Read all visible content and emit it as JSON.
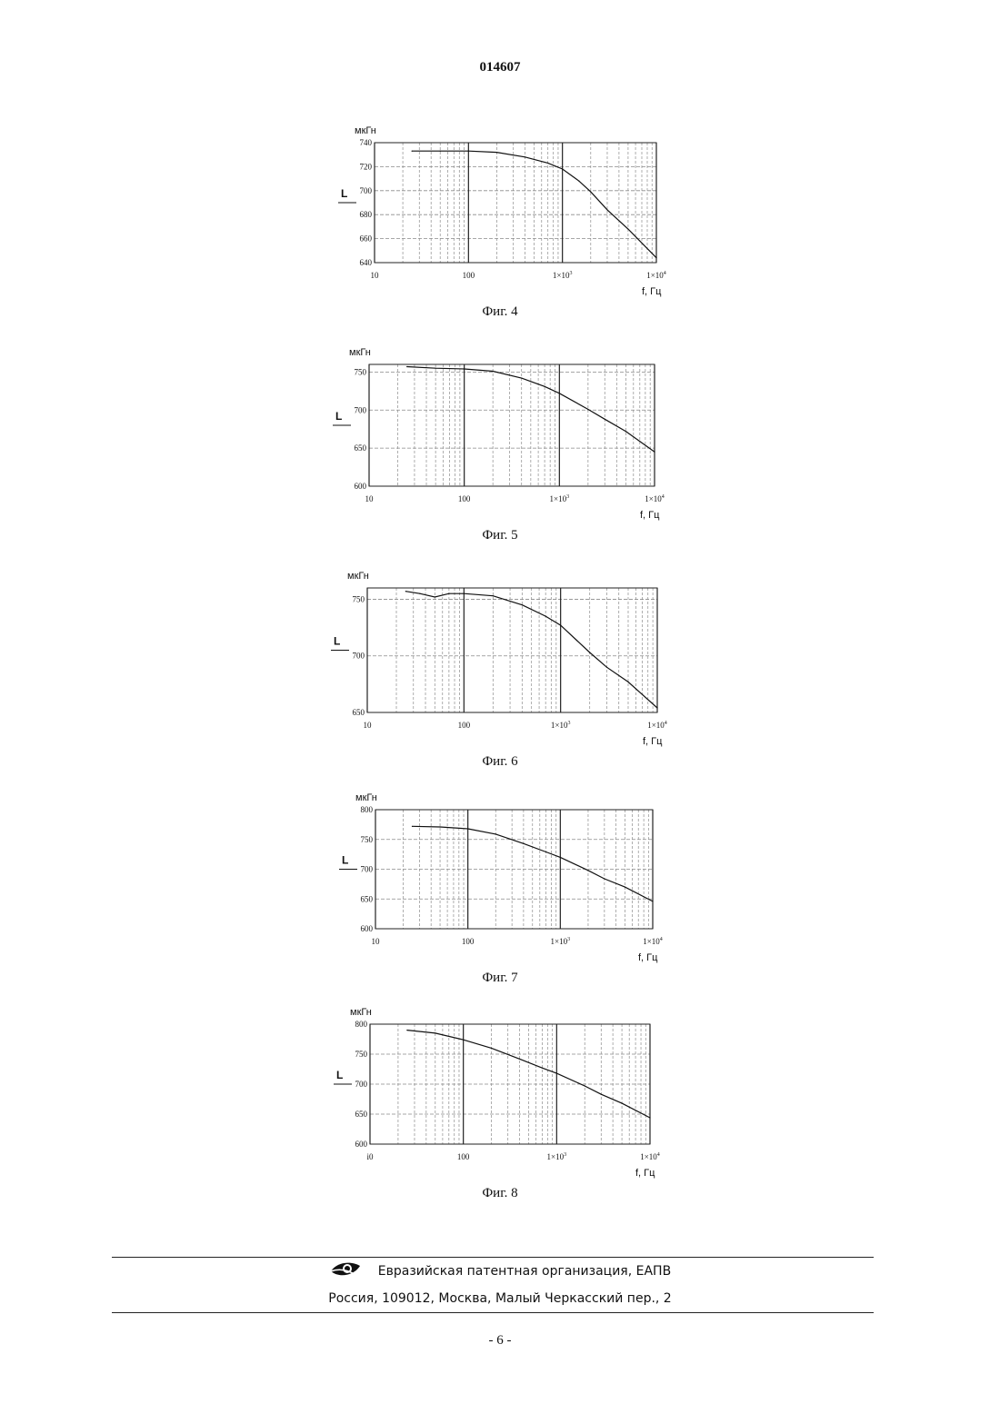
{
  "header": {
    "doc_number": "014607"
  },
  "chart_data": [
    {
      "type": "line",
      "caption": "Фиг. 4",
      "yunit": "мкГн",
      "ylabel": "L",
      "xlabel": "f, Гц",
      "xscale": "log",
      "xlim": [
        10,
        10000
      ],
      "ylim": [
        640,
        740
      ],
      "yticks": [
        640,
        660,
        680,
        700,
        720,
        740
      ],
      "ytick_labels": [
        "640",
        "660",
        "680",
        "700",
        "720",
        "740"
      ],
      "xticks": [
        10,
        100,
        1000,
        10000
      ],
      "xtick_labels": [
        {
          "base": "10",
          "exp": ""
        },
        {
          "base": "100",
          "exp": ""
        },
        {
          "base": "1×10",
          "exp": "3"
        },
        {
          "base": "1×10",
          "exp": "4"
        }
      ],
      "grid": true,
      "x": [
        25,
        50,
        100,
        200,
        400,
        700,
        1000,
        1500,
        2000,
        3000,
        5000,
        10000
      ],
      "y": [
        733,
        733,
        733,
        732,
        728,
        723,
        718,
        708,
        699,
        684,
        668,
        644
      ]
    },
    {
      "type": "line",
      "caption": "Фиг. 5",
      "yunit": "мкГн",
      "ylabel": "L",
      "xlabel": "f, Гц",
      "xscale": "log",
      "xlim": [
        10,
        10000
      ],
      "ylim": [
        600,
        760
      ],
      "yticks": [
        600,
        650,
        700,
        750
      ],
      "ytick_labels": [
        "600",
        "650",
        "700",
        "750"
      ],
      "xticks": [
        10,
        100,
        1000,
        10000
      ],
      "xtick_labels": [
        {
          "base": "10",
          "exp": ""
        },
        {
          "base": "100",
          "exp": ""
        },
        {
          "base": "1×10",
          "exp": "3"
        },
        {
          "base": "1×10",
          "exp": "4"
        }
      ],
      "grid": true,
      "x": [
        25,
        50,
        100,
        200,
        400,
        700,
        1000,
        2000,
        3000,
        5000,
        10000
      ],
      "y": [
        757,
        755,
        754,
        751,
        742,
        731,
        722,
        701,
        688,
        672,
        645
      ]
    },
    {
      "type": "line",
      "caption": "Фиг. 6",
      "yunit": "мкГн",
      "ylabel": "L",
      "xlabel": "f, Гц",
      "xscale": "log",
      "xlim": [
        10,
        10000
      ],
      "ylim": [
        650,
        760
      ],
      "yticks": [
        650,
        700,
        750
      ],
      "ytick_labels": [
        "650",
        "700",
        "750"
      ],
      "xticks": [
        10,
        100,
        1000,
        10000
      ],
      "xtick_labels": [
        {
          "base": "10",
          "exp": ""
        },
        {
          "base": "100",
          "exp": ""
        },
        {
          "base": "1×10",
          "exp": "3"
        },
        {
          "base": "1×10",
          "exp": "4"
        }
      ],
      "grid": true,
      "x": [
        25,
        35,
        50,
        70,
        100,
        200,
        400,
        700,
        1000,
        2000,
        3000,
        5000,
        10000
      ],
      "y": [
        757,
        755,
        752,
        755,
        755,
        753,
        745,
        735,
        727,
        703,
        690,
        677,
        654
      ]
    },
    {
      "type": "line",
      "caption": "Фиг. 7",
      "yunit": "мкГн",
      "ylabel": "L",
      "xlabel": "f, Гц",
      "xscale": "log",
      "xlim": [
        10,
        10000
      ],
      "ylim": [
        600,
        800
      ],
      "yticks": [
        600,
        650,
        700,
        750,
        800
      ],
      "ytick_labels": [
        "600",
        "650",
        "700",
        "750",
        "800"
      ],
      "xticks": [
        10,
        100,
        1000,
        10000
      ],
      "xtick_labels": [
        {
          "base": "10",
          "exp": ""
        },
        {
          "base": "100",
          "exp": ""
        },
        {
          "base": "1×10",
          "exp": "3"
        },
        {
          "base": "1×10",
          "exp": "4"
        }
      ],
      "grid": true,
      "x": [
        25,
        50,
        100,
        200,
        400,
        700,
        1000,
        2000,
        3000,
        5000,
        10000
      ],
      "y": [
        772,
        771,
        768,
        759,
        743,
        729,
        720,
        698,
        684,
        670,
        646
      ]
    },
    {
      "type": "line",
      "caption": "Фиг. 8",
      "yunit": "мкГн",
      "ylabel": "L",
      "xlabel": "f, Гц",
      "xscale": "log",
      "xlim": [
        10,
        10000
      ],
      "ylim": [
        600,
        800
      ],
      "yticks": [
        600,
        650,
        700,
        750,
        800
      ],
      "ytick_labels": [
        "600",
        "650",
        "700",
        "750",
        "800"
      ],
      "xticks": [
        10,
        100,
        1000,
        10000
      ],
      "xtick_labels": [
        {
          "base": "i0",
          "exp": ""
        },
        {
          "base": "100",
          "exp": ""
        },
        {
          "base": "1×10",
          "exp": "3"
        },
        {
          "base": "1×10",
          "exp": "4"
        }
      ],
      "grid": true,
      "x": [
        25,
        50,
        100,
        200,
        400,
        700,
        1000,
        2000,
        3000,
        5000,
        10000
      ],
      "y": [
        790,
        785,
        774,
        760,
        742,
        727,
        718,
        697,
        683,
        668,
        644
      ]
    }
  ],
  "footer": {
    "organization": "Евразийская патентная организация, ЕАПВ",
    "address": "Россия, 109012, Москва, Малый Черкасский пер., 2",
    "page_number": "- 6 -"
  }
}
